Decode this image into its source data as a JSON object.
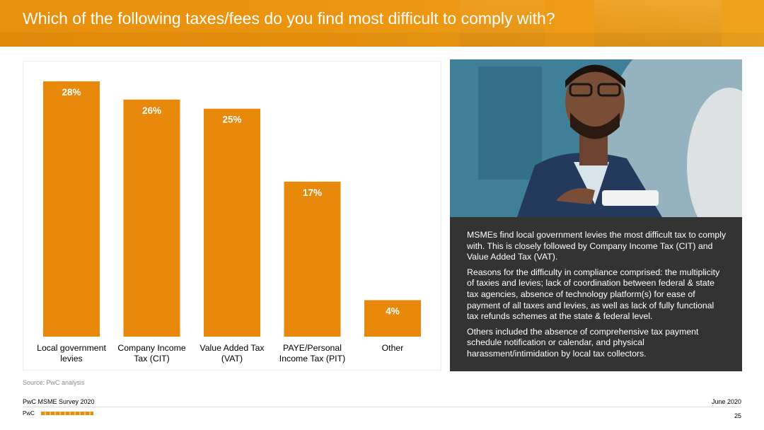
{
  "header": {
    "title": "Which of the following taxes/fees do you find most difficult to comply with?"
  },
  "colors": {
    "accent": "#e8890c",
    "panel": "#333333"
  },
  "chart_data": {
    "type": "bar",
    "categories": [
      [
        "Local government",
        "levies"
      ],
      [
        "Company Income",
        "Tax (CIT)"
      ],
      [
        "Value Added Tax",
        "(VAT)"
      ],
      [
        "PAYE/Personal",
        "Income Tax (PIT)"
      ],
      [
        "Other"
      ]
    ],
    "values": [
      28,
      26,
      25,
      17,
      4
    ],
    "data_labels": [
      "28%",
      "26%",
      "25%",
      "17%",
      "4%"
    ],
    "title": "",
    "xlabel": "",
    "ylabel": "",
    "ylim": [
      0,
      28
    ],
    "grid": false
  },
  "panel": {
    "paragraphs": [
      "MSMEs find local government levies the most difficult tax to comply with. This is closely followed by Company Income Tax (CIT) and Value Added Tax (VAT).",
      "Reasons for the difficulty in compliance comprised: the multiplicity of taxies and levies; lack of coordination between federal & state tax agencies, absence of technology platform(s) for ease of payment of all taxes and levies, as well as lack of fully functional tax refunds schemes at the state & federal level.",
      "Others included the absence of comprehensive tax payment schedule notification or calendar, and physical harassment/intimidation by local tax collectors."
    ]
  },
  "source": "Source: PwC analysis",
  "footer": {
    "left": "PwC MSME Survey 2020",
    "right": "June 2020",
    "brand": "PwC",
    "page": "25"
  }
}
